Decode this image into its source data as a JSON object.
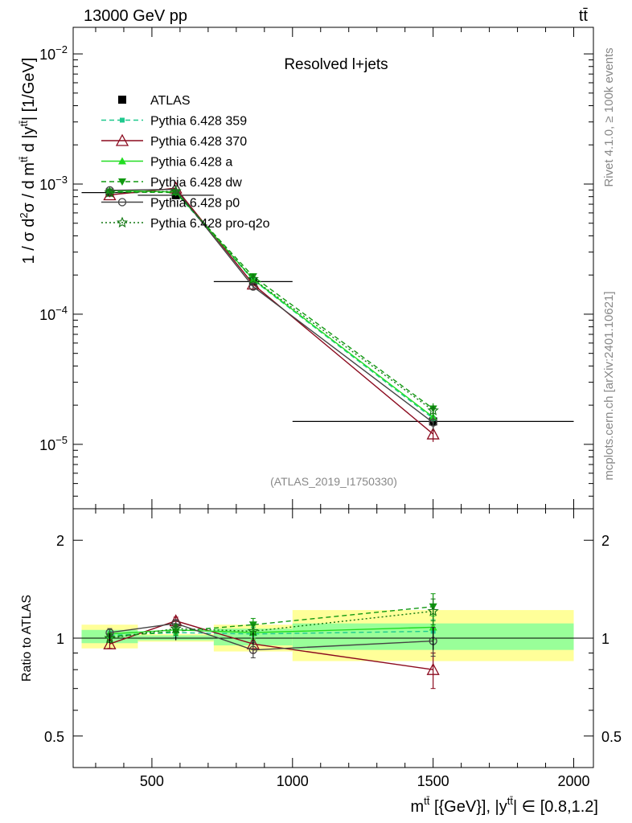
{
  "header": {
    "energy_label": "13000 GeV pp",
    "process_label": "tt̄"
  },
  "side_labels": {
    "rivet": "Rivet 4.1.0, ≥ 100k events",
    "mcplots": "mcplots.cern.ch [arXiv:2401.10621]"
  },
  "chart_data": [
    {
      "type": "line",
      "panel": "main",
      "title": "Resolved l+jets",
      "watermark": "(ATLAS_2019_I1750330)",
      "xlabel": "m^{tt̄} [{GeV}], |y^{tt̄}| ∈ [0.8,1.2]",
      "ylabel": "1 / σ d²σ / d m^{tt̄} d |y^{tt̄}| [1/GeV]",
      "xscale": "linear",
      "yscale": "log",
      "xlim": [
        220,
        2070
      ],
      "ylim": [
        3.2e-06,
        0.016
      ],
      "x_ticks": [
        500,
        1000,
        1500,
        2000
      ],
      "y_ticks": [
        {
          "value": 1e-05,
          "base": "10",
          "exp": "−5"
        },
        {
          "value": 0.0001,
          "base": "10",
          "exp": "−4"
        },
        {
          "value": 0.001,
          "base": "10",
          "exp": "−3"
        },
        {
          "value": 0.01,
          "base": "10",
          "exp": "−2"
        }
      ],
      "bin_edges": [
        250,
        450,
        720,
        1000,
        2000
      ],
      "x": [
        350,
        585,
        860,
        1500
      ],
      "legend_position": "top-left",
      "series": [
        {
          "name": "ATLAS",
          "style": "data",
          "color": "#000000",
          "marker": "square",
          "values": [
            0.00086,
            0.00082,
            0.000178,
            1.5e-05
          ],
          "errors_rel": [
            0.07,
            0.03,
            0.09,
            0.16
          ]
        },
        {
          "name": "Pythia 6.428 359",
          "style": "dashed",
          "color": "#1fc98e",
          "marker": "small-square",
          "values": [
            0.00088,
            0.00086,
            0.000183,
            1.58e-05
          ],
          "errors_rel": [
            0.03,
            0.03,
            0.05,
            0.1
          ]
        },
        {
          "name": "Pythia 6.428 370",
          "style": "solid",
          "color": "#8b0a1e",
          "marker": "open-triangle",
          "values": [
            0.000825,
            0.00093,
            0.00017,
            1.2e-05
          ],
          "errors_rel": [
            0.04,
            0.03,
            0.06,
            0.13
          ]
        },
        {
          "name": "Pythia 6.428 a",
          "style": "solid",
          "color": "#22dd22",
          "marker": "filled-triangle",
          "values": [
            0.00089,
            0.00087,
            0.000185,
            1.62e-05
          ],
          "errors_rel": [
            0.03,
            0.03,
            0.05,
            0.1
          ]
        },
        {
          "name": "Pythia 6.428 dw",
          "style": "dashed",
          "color": "#119911",
          "marker": "filled-triangle-down",
          "values": [
            0.00087,
            0.00086,
            0.000195,
            1.88e-05
          ],
          "errors_rel": [
            0.03,
            0.03,
            0.05,
            0.1
          ]
        },
        {
          "name": "Pythia 6.428 p0",
          "style": "solid",
          "color": "#444444",
          "marker": "open-circle",
          "values": [
            0.000895,
            0.00091,
            0.000163,
            1.47e-05
          ],
          "errors_rel": [
            0.03,
            0.03,
            0.06,
            0.12
          ]
        },
        {
          "name": "Pythia 6.428 pro-q2o",
          "style": "dotted",
          "color": "#117711",
          "marker": "star",
          "values": [
            0.00086,
            0.00088,
            0.000186,
            1.82e-05
          ],
          "errors_rel": [
            0.03,
            0.03,
            0.05,
            0.1
          ]
        }
      ]
    },
    {
      "type": "line",
      "panel": "ratio",
      "ylabel": "Ratio to ATLAS",
      "yscale": "log",
      "xlim": [
        220,
        2070
      ],
      "ylim": [
        0.4,
        2.5
      ],
      "y_ticks": [
        {
          "value": 0.5,
          "label": "0.5"
        },
        {
          "value": 1,
          "label": "1"
        },
        {
          "value": 2,
          "label": "2"
        }
      ],
      "x_ticks": [
        {
          "value": 500,
          "label": "500"
        },
        {
          "value": 1000,
          "label": "1000"
        },
        {
          "value": 1500,
          "label": "1500"
        },
        {
          "value": 2000,
          "label": "2000"
        }
      ],
      "bands": {
        "outer_color": "#ffff99",
        "inner_color": "#99ff99",
        "outer": [
          [
            0.93,
            1.1
          ],
          [
            0.975,
            1.03
          ],
          [
            0.91,
            1.1
          ],
          [
            0.85,
            1.22
          ]
        ],
        "inner": [
          [
            0.965,
            1.06
          ],
          [
            0.985,
            1.02
          ],
          [
            0.95,
            1.07
          ],
          [
            0.92,
            1.11
          ]
        ]
      },
      "series": [
        {
          "name": "Pythia 6.428 359",
          "values": [
            1.02,
            1.04,
            1.03,
            1.05
          ],
          "errors": [
            0.03,
            0.03,
            0.05,
            0.09
          ]
        },
        {
          "name": "Pythia 6.428 370",
          "values": [
            0.96,
            1.13,
            0.96,
            0.8
          ],
          "errors": [
            0.03,
            0.03,
            0.06,
            0.1
          ]
        },
        {
          "name": "Pythia 6.428 a",
          "values": [
            1.03,
            1.06,
            1.04,
            1.08
          ],
          "errors": [
            0.03,
            0.03,
            0.05,
            0.09
          ]
        },
        {
          "name": "Pythia 6.428 dw",
          "values": [
            1.01,
            1.05,
            1.1,
            1.25
          ],
          "errors": [
            0.03,
            0.03,
            0.05,
            0.12
          ]
        },
        {
          "name": "Pythia 6.428 p0",
          "values": [
            1.04,
            1.11,
            0.92,
            0.98
          ],
          "errors": [
            0.03,
            0.03,
            0.05,
            0.1
          ]
        },
        {
          "name": "Pythia 6.428 pro-q2o",
          "values": [
            1.0,
            1.07,
            1.05,
            1.21
          ],
          "errors": [
            0.03,
            0.03,
            0.05,
            0.11
          ]
        }
      ]
    }
  ]
}
